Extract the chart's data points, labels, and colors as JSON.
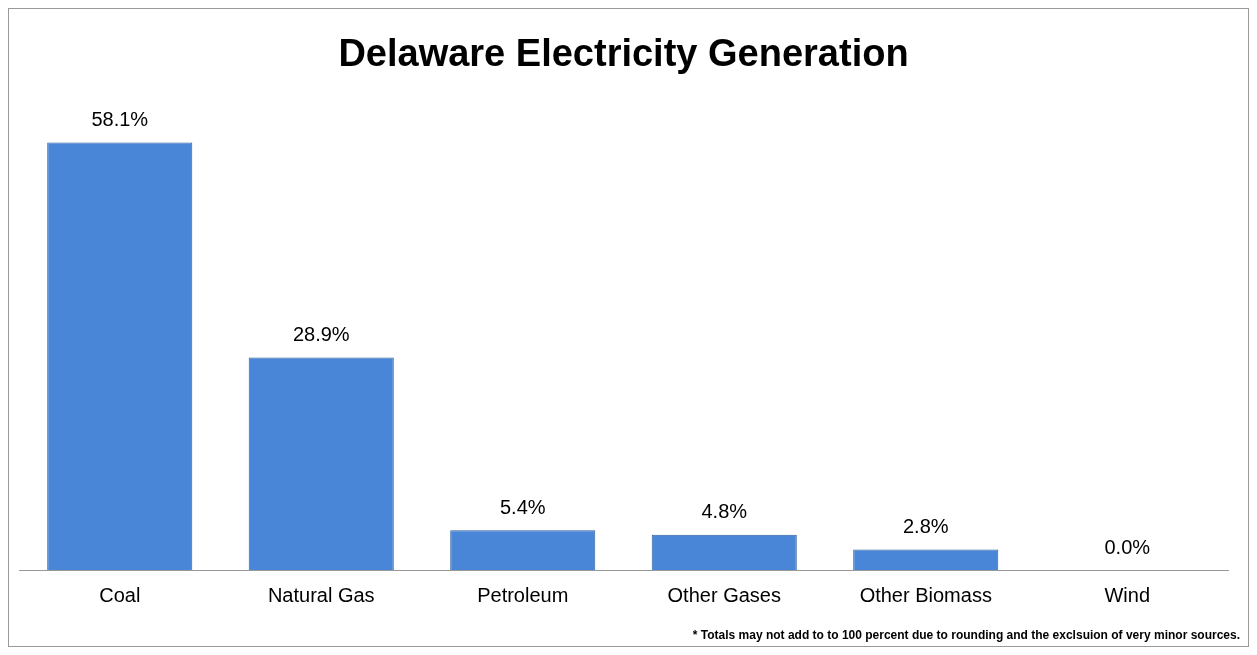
{
  "chart_data": {
    "type": "bar",
    "title": "Delaware Electricity Generation",
    "categories": [
      "Coal",
      "Natural Gas",
      "Petroleum",
      "Other Gases",
      "Other Biomass",
      "Wind"
    ],
    "values": [
      58.1,
      28.9,
      5.4,
      4.8,
      2.8,
      0.0
    ],
    "value_labels": [
      "58.1%",
      "28.9%",
      "5.4%",
      "4.8%",
      "2.8%",
      "0.0%"
    ],
    "color": "#4a86d8",
    "grid": false,
    "legend": false,
    "annotations": [
      "* Totals may not add to to 100 percent due to rounding and the exclsuion of very minor sources."
    ]
  }
}
